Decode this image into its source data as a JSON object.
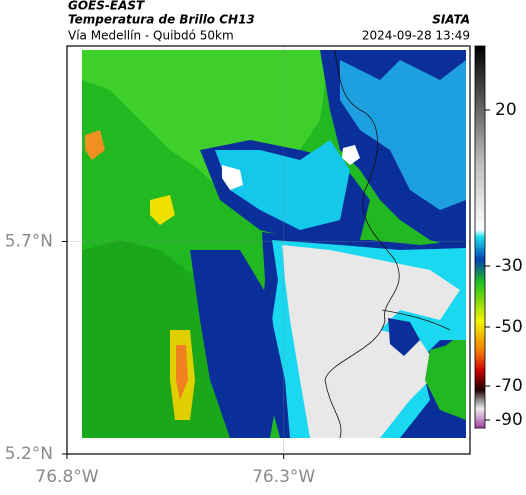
{
  "header": {
    "source": "GOES-EAST",
    "title": "Temperatura de Brillo CH13",
    "org": "SIATA",
    "subtitle": "Vía Medellín - Quibdó 50km",
    "datetime": "2024-09-28 13:49"
  },
  "map": {
    "lonlim": [
      -76.8,
      -75.87
    ],
    "latlim": [
      5.2,
      6.16
    ],
    "lon_ticks": [
      {
        "value": -76.8,
        "label": "76.8°W"
      },
      {
        "value": -76.3,
        "label": "76.3°W"
      }
    ],
    "lat_ticks": [
      {
        "value": 5.2,
        "label": "5.2°N"
      },
      {
        "value": 5.7,
        "label": "5.7°N"
      }
    ],
    "grid": true
  },
  "colorbar": {
    "ticks": [
      20,
      -30,
      -50,
      -70,
      -90
    ]
  }
}
